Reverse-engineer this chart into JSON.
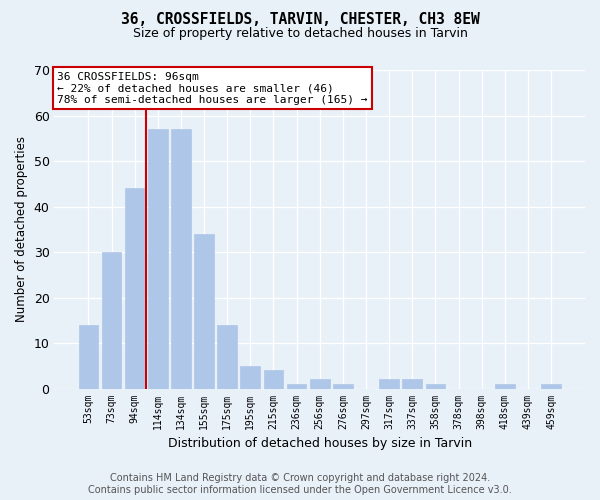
{
  "title1": "36, CROSSFIELDS, TARVIN, CHESTER, CH3 8EW",
  "title2": "Size of property relative to detached houses in Tarvin",
  "xlabel": "Distribution of detached houses by size in Tarvin",
  "ylabel": "Number of detached properties",
  "categories": [
    "53sqm",
    "73sqm",
    "94sqm",
    "114sqm",
    "134sqm",
    "155sqm",
    "175sqm",
    "195sqm",
    "215sqm",
    "236sqm",
    "256sqm",
    "276sqm",
    "297sqm",
    "317sqm",
    "337sqm",
    "358sqm",
    "378sqm",
    "398sqm",
    "418sqm",
    "439sqm",
    "459sqm"
  ],
  "values": [
    14,
    30,
    44,
    57,
    57,
    34,
    14,
    5,
    4,
    1,
    2,
    1,
    0,
    2,
    2,
    1,
    0,
    0,
    1,
    0,
    1
  ],
  "bar_color": "#aec6e8",
  "bar_edgecolor": "#aec6e8",
  "vline_x": 2.5,
  "annotation_text": "36 CROSSFIELDS: 96sqm\n← 22% of detached houses are smaller (46)\n78% of semi-detached houses are larger (165) →",
  "annotation_box_color": "#ffffff",
  "annotation_box_edgecolor": "#cc0000",
  "annotation_fontsize": 8,
  "vline_color": "#cc0000",
  "background_color": "#e8f0f8",
  "grid_color": "#ffffff",
  "ylim": [
    0,
    70
  ],
  "yticks": [
    0,
    10,
    20,
    30,
    40,
    50,
    60,
    70
  ],
  "footer": "Contains HM Land Registry data © Crown copyright and database right 2024.\nContains public sector information licensed under the Open Government Licence v3.0.",
  "footer_fontsize": 7
}
